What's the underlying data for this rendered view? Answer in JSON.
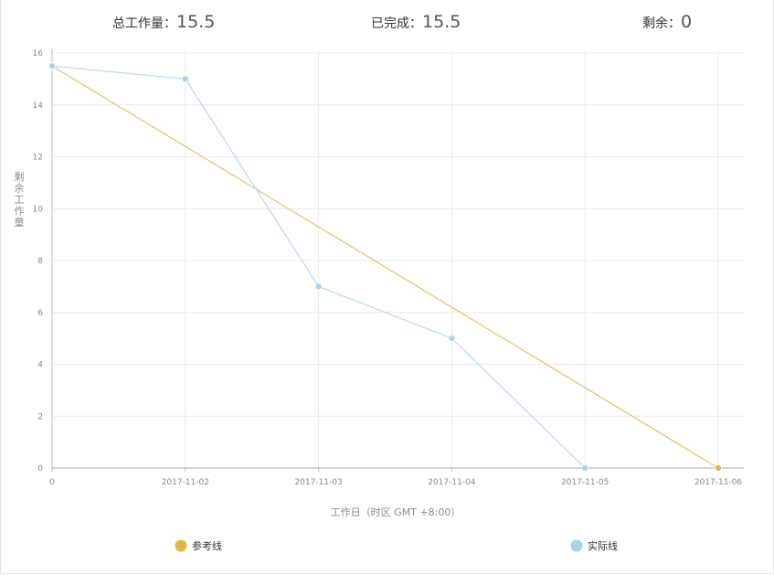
{
  "summary": {
    "total": {
      "label": "总工作量：",
      "value": "15.5"
    },
    "done": {
      "label": "已完成：",
      "value": "15.5"
    },
    "remaining": {
      "label": "剩余：",
      "value": "0"
    }
  },
  "chart_data": {
    "type": "line",
    "categories": [
      "0",
      "2017-11-02",
      "2017-11-03",
      "2017-11-04",
      "2017-11-05",
      "2017-11-06"
    ],
    "series": [
      {
        "name": "参考线",
        "values": [
          15.5,
          null,
          null,
          null,
          null,
          0
        ],
        "color": "#e8c062",
        "marker": "#e6b73e"
      },
      {
        "name": "实际线",
        "values": [
          15.5,
          15,
          7,
          5,
          0,
          null
        ],
        "color": "#b6dbee",
        "marker": "#a9d2ea"
      }
    ],
    "yticks": [
      0,
      2,
      4,
      6,
      8,
      10,
      12,
      14,
      16
    ],
    "ylim": [
      0,
      16
    ],
    "xlabel": "工作日（时区 GMT +8:00）",
    "ylabel": "剩余工作量",
    "grid": true,
    "legend": "bottom"
  }
}
